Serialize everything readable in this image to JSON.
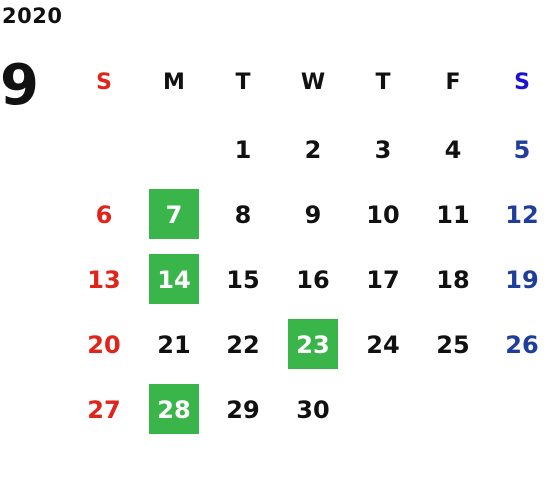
{
  "calendar": {
    "year": "2020",
    "month": "9",
    "weekdays": [
      "S",
      "M",
      "T",
      "W",
      "T",
      "F",
      "S"
    ],
    "weeks": [
      [
        "",
        "",
        "1",
        "2",
        "3",
        "4",
        "5"
      ],
      [
        "6",
        "7",
        "8",
        "9",
        "10",
        "11",
        "12"
      ],
      [
        "13",
        "14",
        "15",
        "16",
        "17",
        "18",
        "19"
      ],
      [
        "20",
        "21",
        "22",
        "23",
        "24",
        "25",
        "26"
      ],
      [
        "27",
        "28",
        "29",
        "30",
        "",
        "",
        ""
      ]
    ],
    "highlighted_days": [
      "7",
      "14",
      "23",
      "28"
    ]
  },
  "colors": {
    "sunday": "#e0231b",
    "saturday_header": "#1a12d6",
    "saturday": "#1f3e9c",
    "weekday": "#111111",
    "highlight_bg": "#3ab54a",
    "highlight_text": "#ffffff"
  }
}
